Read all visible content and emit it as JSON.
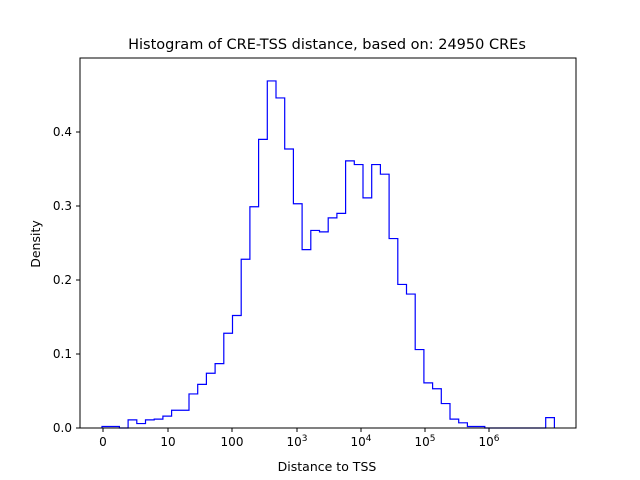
{
  "chart_data": {
    "type": "histogram",
    "title": "Histogram of CRE-TSS distance, based on: 24950 CREs",
    "xlabel": "Distance to TSS",
    "ylabel": "Density",
    "x_scale": "log-like (0, 10, 100, 10^3 ... 10^6)",
    "x_ticks": [
      {
        "value": 0,
        "label": "0",
        "sup": ""
      },
      {
        "value": 10,
        "label": "10",
        "sup": ""
      },
      {
        "value": 100,
        "label": "100",
        "sup": ""
      },
      {
        "value": 1000,
        "label": "10",
        "sup": "3"
      },
      {
        "value": 10000,
        "label": "10",
        "sup": "4"
      },
      {
        "value": 100000,
        "label": "10",
        "sup": "5"
      },
      {
        "value": 1000000,
        "label": "10",
        "sup": "6"
      }
    ],
    "y_ticks": [
      "0.0",
      "0.1",
      "0.2",
      "0.3",
      "0.4"
    ],
    "ylim": [
      0,
      0.5
    ],
    "grid": false,
    "bar_color": "#0000ff",
    "density": [
      0.002,
      0.002,
      0.0,
      0.011,
      0.006,
      0.011,
      0.012,
      0.016,
      0.024,
      0.024,
      0.046,
      0.059,
      0.074,
      0.087,
      0.128,
      0.152,
      0.228,
      0.299,
      0.39,
      0.469,
      0.446,
      0.377,
      0.303,
      0.241,
      0.267,
      0.265,
      0.284,
      0.29,
      0.361,
      0.356,
      0.311,
      0.356,
      0.343,
      0.256,
      0.194,
      0.181,
      0.106,
      0.061,
      0.053,
      0.033,
      0.012,
      0.007,
      0.002,
      0.002,
      0.0,
      0.0,
      0.0,
      0.0,
      0.0,
      0.0,
      0.0,
      0.014
    ]
  }
}
